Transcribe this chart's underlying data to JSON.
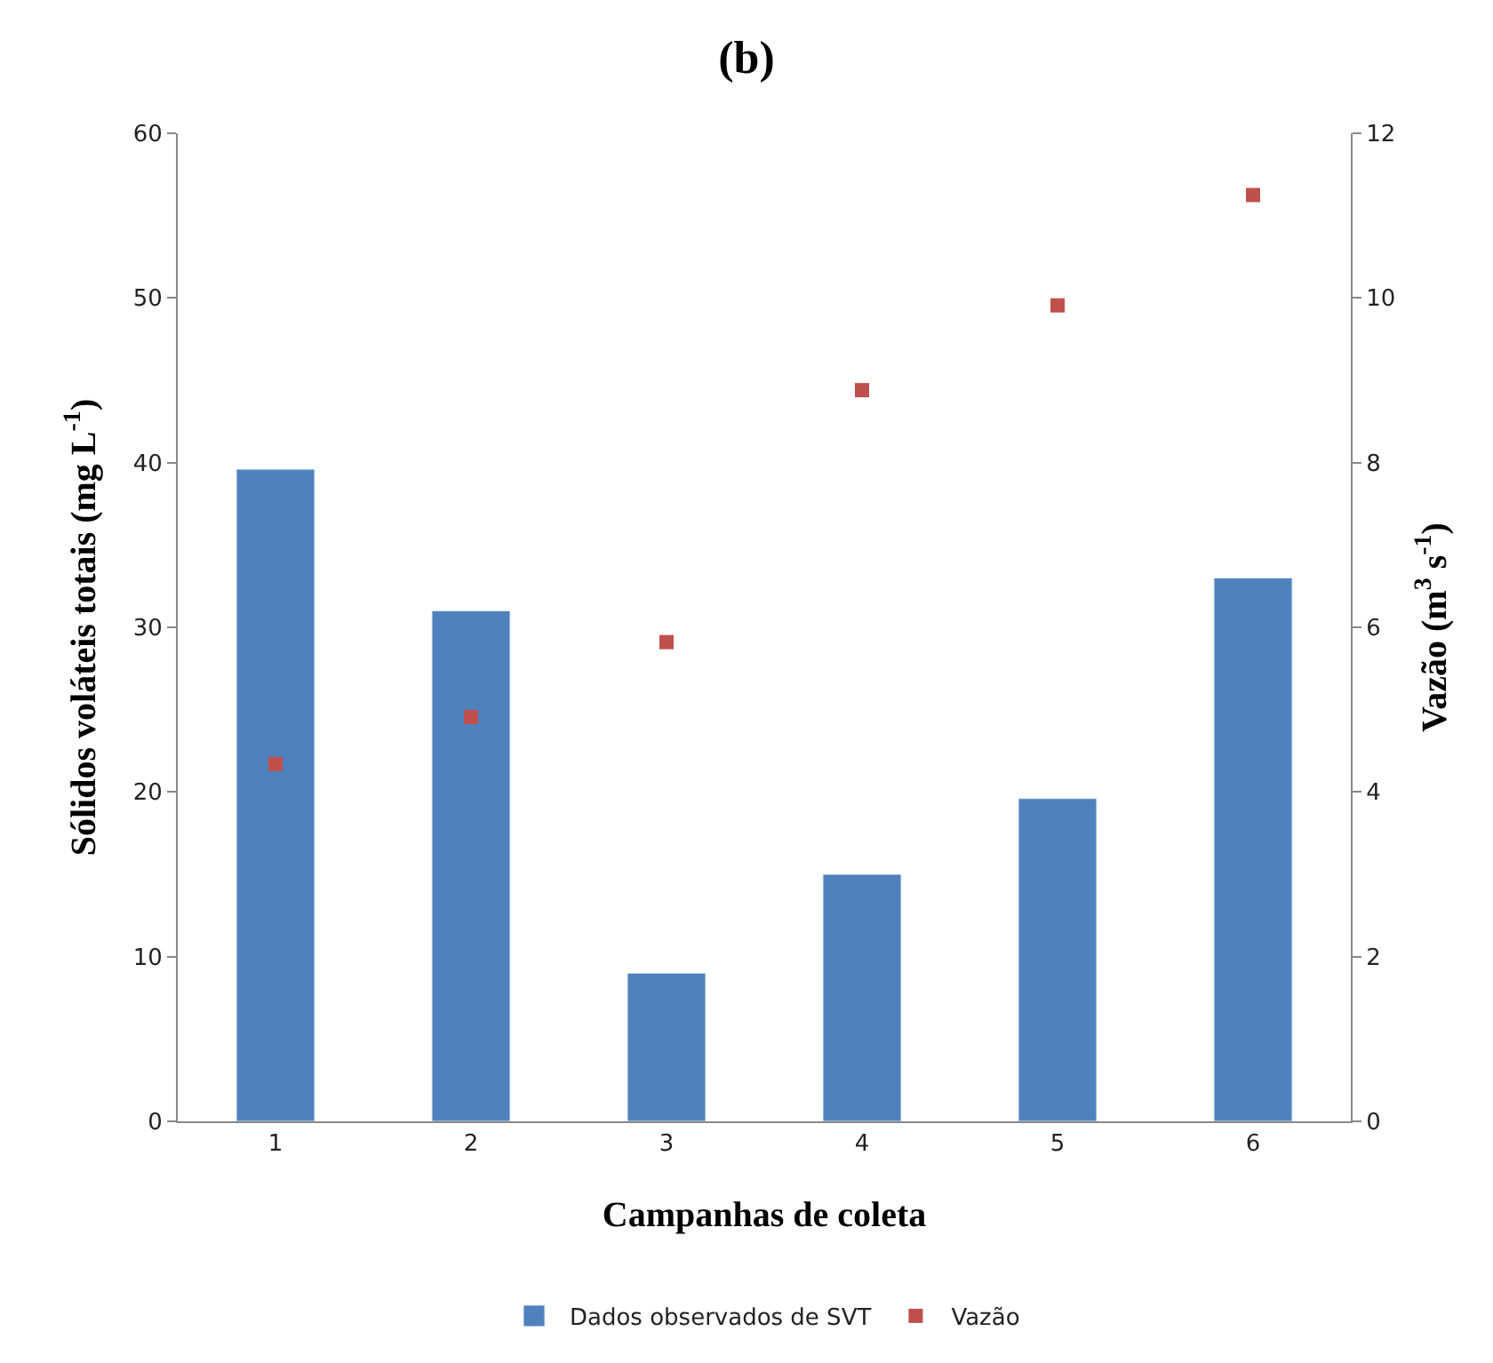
{
  "chart_data": {
    "type": "bar",
    "title": "(b)",
    "xlabel": "Campanhas de coleta",
    "ylabel": "Sólidos voláteis totais (mg L$^{-1}$)",
    "y2label": "Vazão (m$^{3}$ s$^{-1}$)",
    "categories": [
      "1",
      "2",
      "3",
      "4",
      "5",
      "6"
    ],
    "series": [
      {
        "name": "Dados observados de SVT",
        "color": "#4f81bd",
        "values": [
          39.6,
          31.0,
          9.0,
          15.0,
          19.6,
          33.0
        ]
      },
      {
        "name": "Vazão",
        "type": "scatter",
        "axis": "y2",
        "marker": "square",
        "color": "#c0504d",
        "values": [
          4.34,
          4.91,
          5.82,
          8.88,
          9.91,
          11.25
        ]
      }
    ],
    "ylim": [
      0,
      60
    ],
    "yticks": [
      0,
      10,
      20,
      30,
      40,
      50,
      60
    ],
    "y2lim": [
      0,
      12
    ],
    "y2ticks": [
      0,
      2,
      4,
      6,
      8,
      10,
      12
    ],
    "legend": "bottom"
  }
}
